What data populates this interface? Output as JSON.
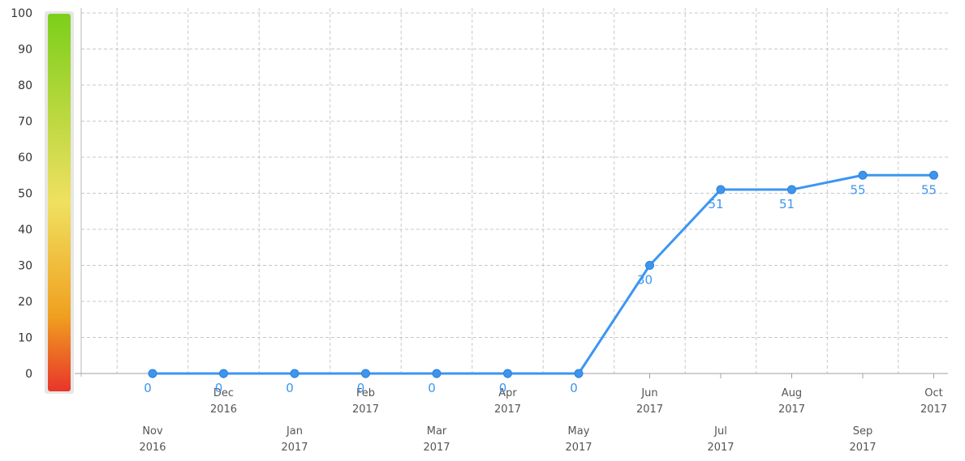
{
  "chart_data": {
    "type": "line",
    "x": [
      {
        "month": "Nov",
        "year": "2016"
      },
      {
        "month": "Dec",
        "year": "2016"
      },
      {
        "month": "Jan",
        "year": "2017"
      },
      {
        "month": "Feb",
        "year": "2017"
      },
      {
        "month": "Mar",
        "year": "2017"
      },
      {
        "month": "Apr",
        "year": "2017"
      },
      {
        "month": "May",
        "year": "2017"
      },
      {
        "month": "Jun",
        "year": "2017"
      },
      {
        "month": "Jul",
        "year": "2017"
      },
      {
        "month": "Aug",
        "year": "2017"
      },
      {
        "month": "Sep",
        "year": "2017"
      },
      {
        "month": "Oct",
        "year": "2017"
      }
    ],
    "series": [
      {
        "values": [
          0,
          0,
          0,
          0,
          0,
          0,
          0,
          30,
          51,
          51,
          55,
          55
        ],
        "color": "#3c96f0"
      }
    ],
    "data_labels": [
      "0",
      "0",
      "0",
      "0",
      "0",
      "0",
      "0",
      "30",
      "51",
      "51",
      "55",
      "55"
    ],
    "ylim": [
      0,
      100
    ],
    "yticks": [
      "0",
      "10",
      "20",
      "30",
      "40",
      "50",
      "60",
      "70",
      "80",
      "90",
      "100"
    ],
    "grid": true,
    "color_scale": {
      "low": "#e8352a",
      "mid": "#f0e060",
      "high": "#7ccf1a"
    }
  }
}
